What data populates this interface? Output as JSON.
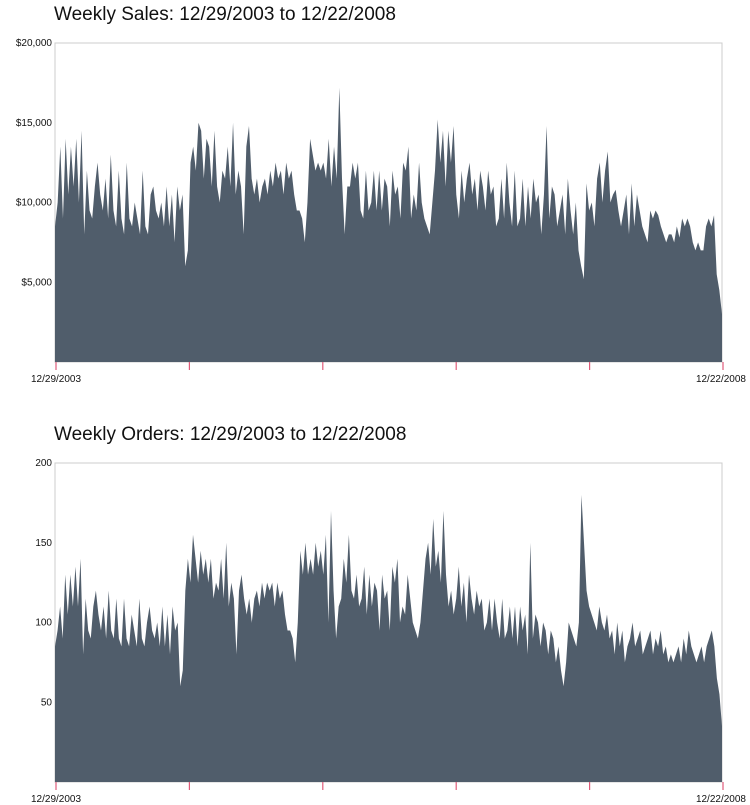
{
  "chart_data": [
    {
      "type": "area",
      "title": "Weekly Sales: 12/29/2003 to 12/22/2008",
      "xlabel": "",
      "ylabel": "",
      "x_range": [
        "12/29/2003",
        "12/22/2008"
      ],
      "x_tick_labels": [
        "12/29/2003",
        "12/22/2008"
      ],
      "x_tick_count": 6,
      "ylim": [
        0,
        20000
      ],
      "y_ticks": [
        5000,
        10000,
        15000,
        20000
      ],
      "y_tick_labels": [
        "$5,000",
        "$10,000",
        "$15,000",
        "$20,000"
      ],
      "grid": false,
      "fill_color": "#505d6b",
      "tick_color": "#e05b7a",
      "series": [
        {
          "values": [
            8500,
            10000,
            13500,
            9000,
            14000,
            10500,
            13500,
            11000,
            14000,
            10000,
            14500,
            8000,
            12000,
            9500,
            9000,
            11000,
            12500,
            10500,
            9500,
            11500,
            9000,
            13000,
            9500,
            8500,
            12000,
            9000,
            8000,
            12500,
            9000,
            8500,
            10000,
            9000,
            8000,
            12000,
            8500,
            8000,
            10500,
            11000,
            9500,
            9000,
            10000,
            8500,
            11000,
            8500,
            10500,
            7500,
            11000,
            9500,
            10500,
            6000,
            7000,
            12500,
            13500,
            12000,
            15000,
            14500,
            11500,
            14000,
            13500,
            11000,
            14500,
            11000,
            10000,
            12000,
            11500,
            13500,
            11000,
            15000,
            10500,
            12000,
            11000,
            8000,
            13500,
            14800,
            11500,
            10500,
            11500,
            10000,
            11000,
            11500,
            10500,
            12000,
            11000,
            12500,
            11500,
            12000,
            10500,
            12500,
            11500,
            12000,
            10500,
            9500,
            9500,
            9000,
            7500,
            10000,
            14000,
            13000,
            12000,
            12500,
            12000,
            12500,
            11500,
            14000,
            11000,
            13500,
            11500,
            17200,
            11500,
            8000,
            11000,
            11000,
            12500,
            11500,
            12500,
            9500,
            9000,
            12000,
            9500,
            10000,
            12000,
            9500,
            12000,
            9500,
            11500,
            11000,
            8500,
            12000,
            10500,
            11000,
            9000,
            12500,
            12000,
            13500,
            9000,
            10500,
            9500,
            12500,
            10000,
            9000,
            8500,
            8000,
            10000,
            12000,
            15200,
            12500,
            14500,
            11000,
            14500,
            12500,
            14800,
            10500,
            9000,
            12000,
            10000,
            11500,
            12500,
            10500,
            11500,
            9500,
            12000,
            11000,
            9500,
            12000,
            10500,
            11000,
            8500,
            9000,
            11500,
            9000,
            12500,
            10000,
            8500,
            12000,
            8500,
            9000,
            11500,
            8500,
            11000,
            9000,
            11500,
            10000,
            10500,
            8000,
            10500,
            14800,
            9000,
            11000,
            10500,
            8500,
            9500,
            10500,
            8000,
            11500,
            9500,
            8000,
            10000,
            7000,
            6000,
            5200,
            11200,
            9500,
            10000,
            8500,
            11500,
            12500,
            10000,
            12000,
            13200,
            10000,
            10500,
            10800,
            9500,
            8500,
            9500,
            10500,
            8000,
            11200,
            8500,
            10500,
            9500,
            8500,
            8000,
            7500,
            9500,
            9000,
            9500,
            9200,
            8500,
            8000,
            7500,
            8000,
            8000,
            7500,
            8500,
            7800,
            9000,
            8500,
            9000,
            8500,
            7500,
            7000,
            7500,
            7000,
            7000,
            8500,
            9000,
            8500,
            9200,
            5500,
            4500,
            3000
          ]
        }
      ]
    },
    {
      "type": "area",
      "title": "Weekly Orders: 12/29/2003 to 12/22/2008",
      "xlabel": "",
      "ylabel": "",
      "x_range": [
        "12/29/2003",
        "12/22/2008"
      ],
      "x_tick_labels": [
        "12/29/2003",
        "12/22/2008"
      ],
      "x_tick_count": 6,
      "ylim": [
        0,
        200
      ],
      "y_ticks": [
        50,
        100,
        150,
        200
      ],
      "y_tick_labels": [
        "50",
        "100",
        "150",
        "200"
      ],
      "grid": false,
      "fill_color": "#505d6b",
      "tick_color": "#e05b7a",
      "series": [
        {
          "values": [
            85,
            95,
            110,
            90,
            130,
            105,
            130,
            110,
            135,
            110,
            140,
            80,
            115,
            95,
            90,
            110,
            120,
            105,
            95,
            110,
            90,
            120,
            95,
            90,
            115,
            90,
            85,
            115,
            90,
            85,
            105,
            95,
            85,
            115,
            90,
            85,
            100,
            110,
            95,
            90,
            100,
            85,
            110,
            85,
            105,
            80,
            110,
            95,
            100,
            60,
            70,
            120,
            140,
            125,
            155,
            140,
            125,
            145,
            130,
            140,
            125,
            140,
            115,
            125,
            120,
            140,
            115,
            150,
            110,
            125,
            115,
            80,
            120,
            130,
            115,
            105,
            115,
            100,
            115,
            120,
            110,
            125,
            115,
            125,
            120,
            125,
            110,
            125,
            115,
            120,
            105,
            95,
            95,
            90,
            75,
            100,
            145,
            130,
            150,
            130,
            140,
            130,
            150,
            135,
            145,
            130,
            155,
            100,
            170,
            120,
            90,
            110,
            115,
            140,
            125,
            155,
            120,
            115,
            130,
            110,
            115,
            135,
            105,
            130,
            110,
            125,
            120,
            95,
            130,
            115,
            120,
            95,
            135,
            125,
            140,
            100,
            110,
            105,
            130,
            115,
            100,
            95,
            90,
            100,
            120,
            140,
            150,
            130,
            165,
            135,
            145,
            125,
            170,
            130,
            110,
            120,
            105,
            115,
            135,
            110,
            125,
            100,
            130,
            115,
            105,
            120,
            110,
            115,
            95,
            100,
            115,
            95,
            115,
            100,
            90,
            115,
            90,
            95,
            110,
            90,
            110,
            85,
            110,
            95,
            105,
            80,
            150,
            90,
            105,
            100,
            85,
            100,
            95,
            80,
            95,
            90,
            75,
            85,
            70,
            60,
            75,
            100,
            95,
            90,
            85,
            100,
            180,
            150,
            120,
            110,
            105,
            100,
            95,
            110,
            100,
            95,
            105,
            90,
            95,
            80,
            100,
            85,
            95,
            75,
            85,
            90,
            100,
            85,
            90,
            95,
            80,
            85,
            90,
            95,
            80,
            90,
            85,
            95,
            80,
            85,
            75,
            80,
            75,
            80,
            85,
            75,
            90,
            80,
            95,
            85,
            80,
            75,
            80,
            85,
            75,
            85,
            90,
            95,
            85,
            65,
            55,
            35
          ]
        }
      ]
    }
  ]
}
